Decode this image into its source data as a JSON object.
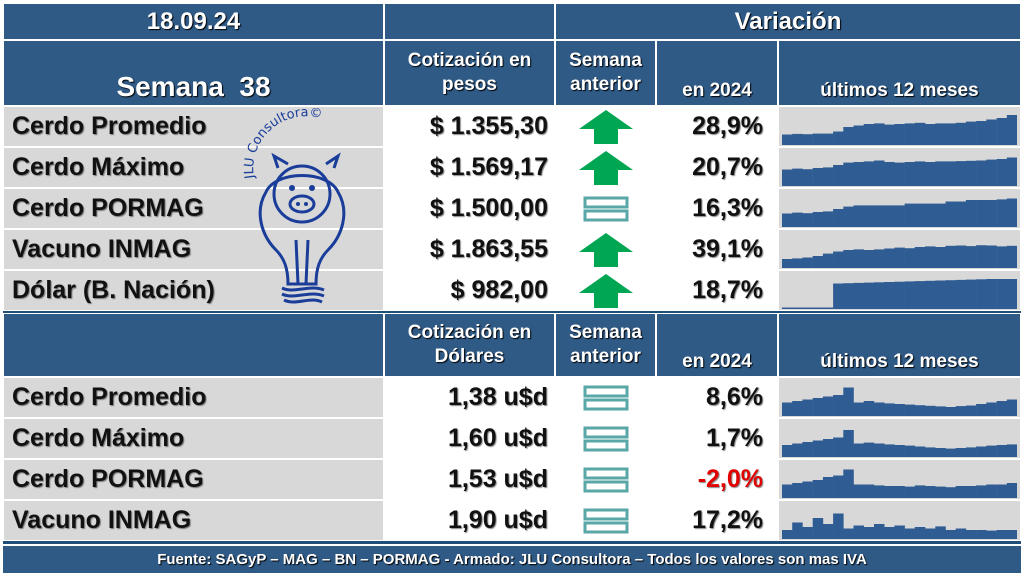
{
  "header": {
    "date": "18.09.24",
    "variation_title": "Variación",
    "week_label": "Semana  38",
    "col_price_pesos": "Cotización en pesos",
    "col_prev_week": "Semana anterior",
    "col_2024": "en 2024",
    "col_12m": "últimos  12 meses",
    "col_price_usd": "Cotización en Dólares"
  },
  "pesos_rows": [
    {
      "name": "Cerdo Promedio",
      "price": "$ 1.355,30",
      "trend": "up-arrow-icon",
      "ytd": "28,9%",
      "spark": [
        0.35,
        0.37,
        0.36,
        0.38,
        0.38,
        0.45,
        0.6,
        0.65,
        0.7,
        0.72,
        0.68,
        0.7,
        0.72,
        0.74,
        0.7,
        0.72,
        0.72,
        0.74,
        0.78,
        0.8,
        0.85,
        0.9,
        1.0
      ]
    },
    {
      "name": "Cerdo Máximo",
      "price": "$ 1.569,17",
      "trend": "up-arrow-icon",
      "ytd": "20,7%",
      "spark": [
        0.55,
        0.58,
        0.56,
        0.6,
        0.62,
        0.7,
        0.78,
        0.8,
        0.82,
        0.85,
        0.8,
        0.78,
        0.8,
        0.82,
        0.8,
        0.82,
        0.82,
        0.83,
        0.84,
        0.85,
        0.88,
        0.9,
        0.95
      ]
    },
    {
      "name": "Cerdo PORMAG",
      "price": "$ 1.500,00",
      "trend": "equal-icon",
      "ytd": "16,3%",
      "spark": [
        0.45,
        0.48,
        0.46,
        0.5,
        0.52,
        0.6,
        0.68,
        0.72,
        0.72,
        0.72,
        0.72,
        0.72,
        0.78,
        0.78,
        0.78,
        0.78,
        0.85,
        0.85,
        0.9,
        0.9,
        0.9,
        0.92,
        0.95
      ]
    },
    {
      "name": "Vacuno INMAG",
      "price": "$ 1.863,55",
      "trend": "up-arrow-icon",
      "ytd": "39,1%",
      "spark": [
        0.3,
        0.32,
        0.35,
        0.4,
        0.48,
        0.55,
        0.6,
        0.62,
        0.6,
        0.62,
        0.65,
        0.68,
        0.66,
        0.7,
        0.72,
        0.7,
        0.74,
        0.75,
        0.73,
        0.76,
        0.75,
        0.72,
        0.74
      ]
    },
    {
      "name": "Dólar (B. Nación)",
      "price": "$ 982,00",
      "trend": "up-arrow-icon",
      "ytd": "18,7%",
      "spark": [
        0.05,
        0.05,
        0.05,
        0.05,
        0.05,
        0.85,
        0.86,
        0.87,
        0.88,
        0.89,
        0.9,
        0.91,
        0.92,
        0.93,
        0.94,
        0.95,
        0.96,
        0.97,
        0.98,
        0.99,
        1.0,
        1.0,
        1.0
      ]
    }
  ],
  "usd_rows": [
    {
      "name": "Cerdo Promedio",
      "price": "1,38 u$d",
      "trend": "equal-icon",
      "ytd": "8,6%",
      "negative": false,
      "spark": [
        0.45,
        0.5,
        0.55,
        0.6,
        0.65,
        0.7,
        0.95,
        0.45,
        0.5,
        0.45,
        0.42,
        0.4,
        0.38,
        0.36,
        0.34,
        0.32,
        0.3,
        0.33,
        0.35,
        0.4,
        0.45,
        0.5,
        0.55
      ]
    },
    {
      "name": "Cerdo Máximo",
      "price": "1,60 u$d",
      "trend": "equal-icon",
      "ytd": "1,7%",
      "negative": false,
      "spark": [
        0.4,
        0.45,
        0.5,
        0.55,
        0.6,
        0.65,
        0.9,
        0.45,
        0.48,
        0.45,
        0.42,
        0.4,
        0.38,
        0.35,
        0.32,
        0.3,
        0.28,
        0.3,
        0.32,
        0.35,
        0.38,
        0.4,
        0.42
      ]
    },
    {
      "name": "Cerdo PORMAG",
      "price": "1,53 u$d",
      "trend": "equal-icon",
      "ytd": "-2,0%",
      "negative": true,
      "spark": [
        0.45,
        0.5,
        0.55,
        0.6,
        0.7,
        0.75,
        0.95,
        0.45,
        0.45,
        0.42,
        0.4,
        0.4,
        0.38,
        0.42,
        0.4,
        0.38,
        0.36,
        0.4,
        0.4,
        0.42,
        0.45,
        0.45,
        0.5
      ]
    },
    {
      "name": "Vacuno INMAG",
      "price": "1,90 u$d",
      "trend": "equal-icon",
      "ytd": "17,2%",
      "negative": false,
      "spark": [
        0.3,
        0.55,
        0.4,
        0.7,
        0.5,
        0.85,
        0.35,
        0.45,
        0.4,
        0.5,
        0.4,
        0.45,
        0.35,
        0.4,
        0.35,
        0.42,
        0.3,
        0.35,
        0.3,
        0.3,
        0.28,
        0.3,
        0.3
      ]
    }
  ],
  "logo": {
    "text": "JLU Consultora©"
  },
  "footer": "Fuente: SAGyP – MAG – BN – PORMAG - Armado: JLU Consultora – Todos los valores son mas IVA",
  "colors": {
    "bar": "#2f5d93",
    "up": "#00a651",
    "equal": "#5aa7a8",
    "negative": "#e00000",
    "header": "#2f5a86"
  }
}
